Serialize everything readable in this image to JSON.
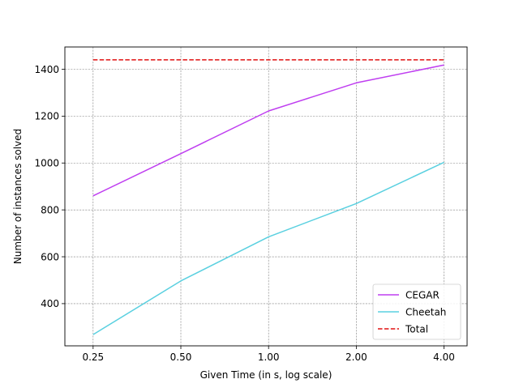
{
  "chart_data": {
    "type": "line",
    "title": "",
    "xlabel": "Given Time (in s, log scale)",
    "ylabel": "Number of instances solved",
    "x_scale": "log2",
    "x": [
      0.25,
      0.5,
      1.0,
      2.0,
      4.0
    ],
    "x_tick_labels": [
      "0.25",
      "0.50",
      "1.00",
      "2.00",
      "4.00"
    ],
    "xlim": [
      0.2,
      4.8
    ],
    "ylim": [
      220,
      1495
    ],
    "y_ticks": [
      400,
      600,
      800,
      1000,
      1200,
      1400
    ],
    "y_tick_labels": [
      "400",
      "600",
      "800",
      "1000",
      "1200",
      "1400"
    ],
    "grid": true,
    "legend_position": "lower-right",
    "series": [
      {
        "name": "CEGAR",
        "values": [
          860,
          1040,
          1222,
          1342,
          1418
        ],
        "color": "#bf3ef0",
        "style": "solid"
      },
      {
        "name": "Cheetah",
        "values": [
          268,
          497,
          685,
          827,
          1003
        ],
        "color": "#5ad0e0",
        "style": "solid"
      },
      {
        "name": "Total",
        "values": [
          1440,
          1440,
          1440,
          1440,
          1440
        ],
        "color": "#e01010",
        "style": "dashed"
      }
    ]
  }
}
